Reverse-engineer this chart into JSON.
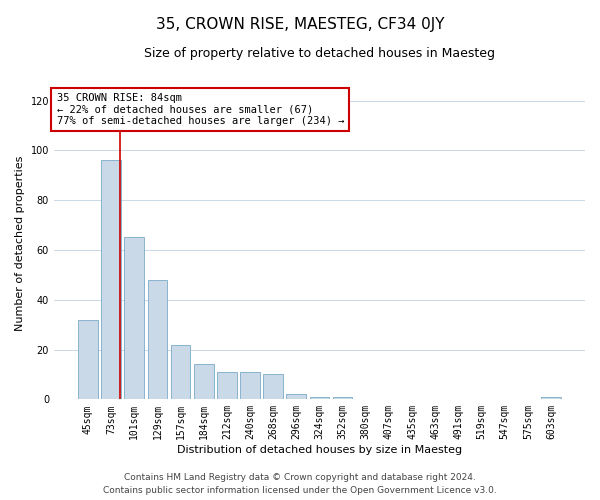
{
  "title": "35, CROWN RISE, MAESTEG, CF34 0JY",
  "subtitle": "Size of property relative to detached houses in Maesteg",
  "xlabel": "Distribution of detached houses by size in Maesteg",
  "ylabel": "Number of detached properties",
  "bar_labels": [
    "45sqm",
    "73sqm",
    "101sqm",
    "129sqm",
    "157sqm",
    "184sqm",
    "212sqm",
    "240sqm",
    "268sqm",
    "296sqm",
    "324sqm",
    "352sqm",
    "380sqm",
    "407sqm",
    "435sqm",
    "463sqm",
    "491sqm",
    "519sqm",
    "547sqm",
    "575sqm",
    "603sqm"
  ],
  "bar_values": [
    32,
    96,
    65,
    48,
    22,
    14,
    11,
    11,
    10,
    2,
    1,
    1,
    0,
    0,
    0,
    0,
    0,
    0,
    0,
    0,
    1
  ],
  "bar_color": "#c9d9e8",
  "bar_edge_color": "#7aaac8",
  "ylim": [
    0,
    125
  ],
  "yticks": [
    0,
    20,
    40,
    60,
    80,
    100,
    120
  ],
  "vline_x": 1.38,
  "vline_color": "#cc0000",
  "annotation_text": "35 CROWN RISE: 84sqm\n← 22% of detached houses are smaller (67)\n77% of semi-detached houses are larger (234) →",
  "annotation_box_color": "#ffffff",
  "annotation_box_edge_color": "#cc0000",
  "footer_line1": "Contains HM Land Registry data © Crown copyright and database right 2024.",
  "footer_line2": "Contains public sector information licensed under the Open Government Licence v3.0.",
  "background_color": "#ffffff",
  "grid_color": "#c8d8e8",
  "title_fontsize": 11,
  "subtitle_fontsize": 9,
  "axis_label_fontsize": 8,
  "tick_fontsize": 7,
  "annotation_fontsize": 7.5,
  "footer_fontsize": 6.5
}
